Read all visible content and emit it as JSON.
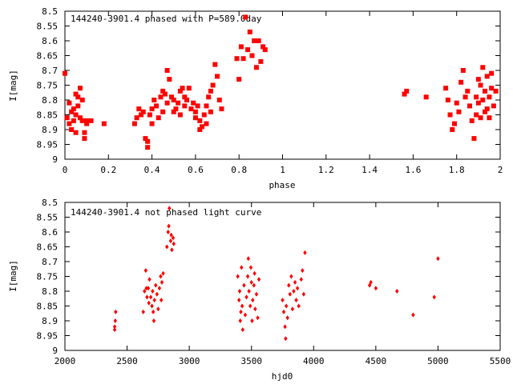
{
  "chart_data": [
    {
      "type": "scatter",
      "title": "144240-3901.4 phased with P=589.0day",
      "xlabel": "phase",
      "ylabel": "I[mag]",
      "xlim": [
        0,
        2
      ],
      "ylim": [
        9,
        8.5
      ],
      "y_inverted": true,
      "xticks": [
        "0",
        "0.2",
        "0.4",
        "0.6",
        "0.8",
        "1",
        "1.2",
        "1.4",
        "1.6",
        "1.8",
        "2"
      ],
      "yticks": [
        "8.5",
        "8.55",
        "8.6",
        "8.65",
        "8.7",
        "8.75",
        "8.8",
        "8.85",
        "8.9",
        "8.95",
        "9"
      ],
      "marker_color": "#ff0000",
      "marker": "filled-square",
      "series": [
        {
          "x": [
            0.0,
            0.01,
            0.02,
            0.02,
            0.03,
            0.03,
            0.04,
            0.04,
            0.05,
            0.05,
            0.05,
            0.06,
            0.06,
            0.07,
            0.07,
            0.08,
            0.08,
            0.09,
            0.09,
            0.1,
            0.1,
            0.12,
            0.18,
            0.32,
            0.33,
            0.34,
            0.35,
            0.36,
            0.37,
            0.38,
            0.38,
            0.39,
            0.4,
            0.4,
            0.41,
            0.42,
            0.43,
            0.44,
            0.45,
            0.45,
            0.46,
            0.47,
            0.47,
            0.48,
            0.49,
            0.5,
            0.5,
            0.51,
            0.52,
            0.53,
            0.53,
            0.54,
            0.55,
            0.55,
            0.56,
            0.57,
            0.58,
            0.59,
            0.6,
            0.6,
            0.61,
            0.62,
            0.62,
            0.63,
            0.64,
            0.65,
            0.65,
            0.66,
            0.67,
            0.67,
            0.68,
            0.69,
            0.7,
            0.71,
            0.72,
            0.79,
            0.8,
            0.81,
            0.82,
            0.83,
            0.84,
            0.85,
            0.86,
            0.87,
            0.88,
            0.89,
            0.9,
            0.91,
            0.92,
            1.56,
            1.57,
            1.66,
            1.75,
            1.76,
            1.77,
            1.78,
            1.79,
            1.8,
            1.81,
            1.82,
            1.83,
            1.84,
            1.85,
            1.86,
            1.87,
            1.88,
            1.89,
            1.89,
            1.9,
            1.9,
            1.91,
            1.91,
            1.92,
            1.92,
            1.93,
            1.93,
            1.94,
            1.94,
            1.95,
            1.95,
            1.96,
            1.96,
            1.97,
            1.98
          ],
          "y": [
            8.71,
            8.86,
            8.81,
            8.88,
            8.84,
            8.9,
            8.87,
            8.83,
            8.78,
            8.85,
            8.91,
            8.82,
            8.79,
            8.86,
            8.76,
            8.8,
            8.87,
            8.93,
            8.91,
            8.87,
            8.88,
            8.87,
            8.88,
            8.88,
            8.86,
            8.83,
            8.85,
            8.84,
            8.93,
            8.94,
            8.96,
            8.85,
            8.83,
            8.88,
            8.8,
            8.82,
            8.86,
            8.79,
            8.77,
            8.84,
            8.78,
            8.81,
            8.7,
            8.73,
            8.79,
            8.84,
            8.8,
            8.83,
            8.81,
            8.77,
            8.85,
            8.76,
            8.79,
            8.82,
            8.8,
            8.76,
            8.83,
            8.81,
            8.86,
            8.84,
            8.82,
            8.9,
            8.87,
            8.89,
            8.85,
            8.82,
            8.88,
            8.79,
            8.77,
            8.84,
            8.75,
            8.68,
            8.72,
            8.8,
            8.83,
            8.66,
            8.73,
            8.62,
            8.66,
            8.52,
            8.63,
            8.57,
            8.65,
            8.6,
            8.69,
            8.6,
            8.67,
            8.62,
            8.63,
            8.78,
            8.77,
            8.79,
            8.76,
            8.8,
            8.85,
            8.9,
            8.88,
            8.81,
            8.84,
            8.74,
            8.7,
            8.79,
            8.77,
            8.82,
            8.87,
            8.93,
            8.85,
            8.79,
            8.73,
            8.81,
            8.75,
            8.86,
            8.8,
            8.69,
            8.77,
            8.84,
            8.72,
            8.83,
            8.79,
            8.86,
            8.71,
            8.76,
            8.82,
            8.77
          ]
        }
      ]
    },
    {
      "type": "scatter",
      "title": "144240-3901.4 not phased light curve",
      "xlabel": "hjd0",
      "ylabel": "I[mag]",
      "xlim": [
        2000,
        5500
      ],
      "ylim": [
        9,
        8.5
      ],
      "y_inverted": true,
      "xticks": [
        "2000",
        "2500",
        "3000",
        "3500",
        "4000",
        "4500",
        "5000",
        "5500"
      ],
      "yticks": [
        "8.5",
        "8.55",
        "8.6",
        "8.65",
        "8.7",
        "8.75",
        "8.8",
        "8.85",
        "8.9",
        "8.95",
        "9"
      ],
      "marker_color": "#ff0000",
      "marker": "filled-diamond",
      "series": [
        {
          "x": [
            2400,
            2400,
            2405,
            2408,
            2630,
            2640,
            2650,
            2655,
            2660,
            2670,
            2675,
            2680,
            2690,
            2700,
            2705,
            2710,
            2715,
            2720,
            2730,
            2740,
            2750,
            2760,
            2770,
            2775,
            2780,
            2790,
            2820,
            2830,
            2835,
            2840,
            2850,
            2855,
            2860,
            2870,
            2875,
            3390,
            3400,
            3405,
            3410,
            3415,
            3420,
            3425,
            3430,
            3440,
            3450,
            3460,
            3470,
            3475,
            3480,
            3490,
            3495,
            3500,
            3505,
            3510,
            3520,
            3525,
            3530,
            3540,
            3550,
            3560,
            3750,
            3760,
            3770,
            3775,
            3780,
            3790,
            3800,
            3810,
            3820,
            3830,
            3840,
            3850,
            3860,
            3870,
            3880,
            3900,
            3910,
            3920,
            3930,
            4450,
            4460,
            4500,
            4670,
            4800,
            4970,
            5000
          ],
          "y": [
            8.93,
            8.92,
            8.9,
            8.87,
            8.87,
            8.8,
            8.73,
            8.79,
            8.82,
            8.79,
            8.84,
            8.76,
            8.82,
            8.85,
            8.8,
            8.87,
            8.9,
            8.83,
            8.78,
            8.81,
            8.86,
            8.79,
            8.75,
            8.83,
            8.77,
            8.74,
            8.65,
            8.6,
            8.58,
            8.52,
            8.63,
            8.61,
            8.66,
            8.62,
            8.64,
            8.75,
            8.83,
            8.8,
            8.9,
            8.87,
            8.72,
            8.85,
            8.93,
            8.78,
            8.88,
            8.82,
            8.75,
            8.69,
            8.8,
            8.85,
            8.72,
            8.77,
            8.9,
            8.83,
            8.78,
            8.74,
            8.86,
            8.81,
            8.89,
            8.76,
            8.83,
            8.87,
            8.92,
            8.96,
            8.85,
            8.89,
            8.78,
            8.81,
            8.75,
            8.86,
            8.8,
            8.77,
            8.83,
            8.79,
            8.85,
            8.76,
            8.73,
            8.81,
            8.67,
            8.78,
            8.77,
            8.79,
            8.8,
            8.88,
            8.82,
            8.69
          ]
        }
      ]
    }
  ]
}
